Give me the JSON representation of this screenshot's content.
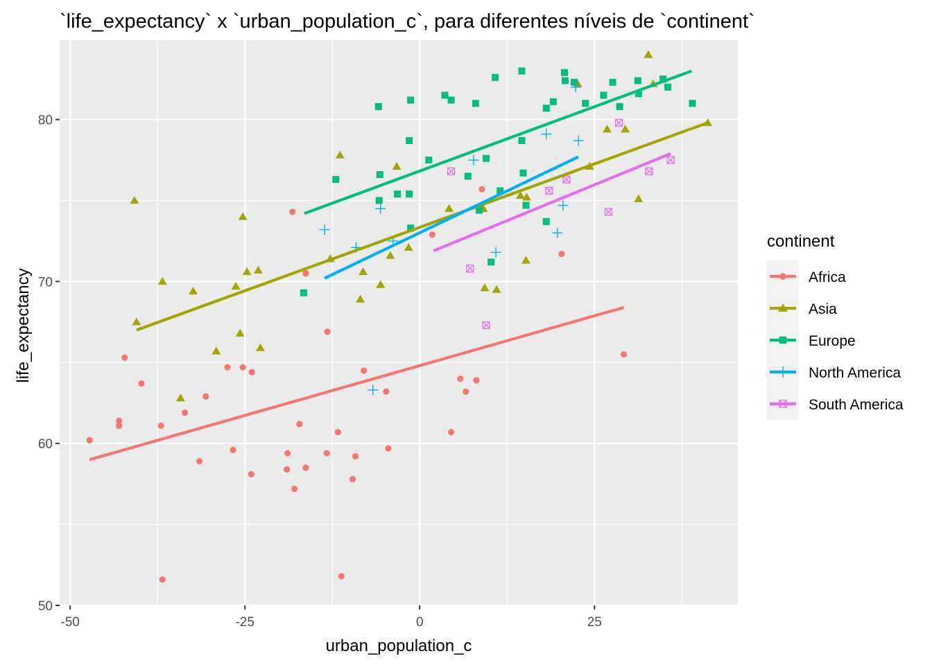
{
  "chart_data": {
    "type": "scatter",
    "title": "`life_expectancy` x `urban_population_c`, para diferentes níveis de `continent`",
    "xlabel": "urban_population_c",
    "ylabel": "life_expectancy",
    "xlim": [
      -51.5,
      45.5
    ],
    "ylim": [
      50,
      84.9
    ],
    "x_ticks": [
      -50,
      -25,
      0,
      25
    ],
    "x_tick_labels": [
      "-50",
      "-25",
      "0",
      "25"
    ],
    "y_ticks": [
      50,
      60,
      70,
      80
    ],
    "y_tick_labels": [
      "50",
      "60",
      "70",
      "80"
    ],
    "grid": true,
    "background": "#ebebeb",
    "legend": {
      "title": "continent",
      "placement": "right"
    },
    "series": [
      {
        "name": "Africa",
        "color": "#F8766D",
        "shape": "circle",
        "trend": [
          [
            -47.2,
            59.0
          ],
          [
            29.2,
            68.4
          ]
        ],
        "points": [
          [
            -47.2,
            60.2
          ],
          [
            -43.0,
            61.4
          ],
          [
            -43.0,
            61.1
          ],
          [
            -42.2,
            65.3
          ],
          [
            -39.8,
            63.7
          ],
          [
            -37.0,
            61.1
          ],
          [
            -36.8,
            51.6
          ],
          [
            -33.6,
            61.9
          ],
          [
            -31.5,
            58.9
          ],
          [
            -30.6,
            62.9
          ],
          [
            -27.5,
            64.7
          ],
          [
            -26.7,
            59.6
          ],
          [
            -25.3,
            64.7
          ],
          [
            -24.1,
            58.1
          ],
          [
            -24.0,
            64.4
          ],
          [
            -18.2,
            74.3
          ],
          [
            -19.0,
            58.4
          ],
          [
            -18.9,
            59.4
          ],
          [
            -17.9,
            57.2
          ],
          [
            -17.2,
            61.2
          ],
          [
            -16.3,
            58.5
          ],
          [
            -16.3,
            70.5
          ],
          [
            -13.2,
            66.9
          ],
          [
            -13.3,
            59.4
          ],
          [
            -11.7,
            60.7
          ],
          [
            -11.2,
            51.8
          ],
          [
            -9.6,
            57.8
          ],
          [
            -9.2,
            59.2
          ],
          [
            -8.0,
            64.5
          ],
          [
            -4.8,
            63.2
          ],
          [
            -4.5,
            59.7
          ],
          [
            1.8,
            72.9
          ],
          [
            4.5,
            60.7
          ],
          [
            5.8,
            64.0
          ],
          [
            6.6,
            63.2
          ],
          [
            8.1,
            63.9
          ],
          [
            8.9,
            75.7
          ],
          [
            20.3,
            71.7
          ],
          [
            29.2,
            65.5
          ]
        ]
      },
      {
        "name": "Asia",
        "color": "#A3A500",
        "shape": "triangle",
        "trend": [
          [
            -40.5,
            67.0
          ],
          [
            41.2,
            79.8
          ]
        ],
        "points": [
          [
            -40.8,
            75.0
          ],
          [
            -40.5,
            67.5
          ],
          [
            -36.8,
            70.0
          ],
          [
            -34.2,
            62.8
          ],
          [
            -32.4,
            69.4
          ],
          [
            -29.1,
            65.7
          ],
          [
            -26.3,
            69.7
          ],
          [
            -25.7,
            66.8
          ],
          [
            -25.3,
            74.0
          ],
          [
            -24.7,
            70.6
          ],
          [
            -23.1,
            70.7
          ],
          [
            -22.8,
            65.9
          ],
          [
            -12.8,
            71.4
          ],
          [
            -11.4,
            77.8
          ],
          [
            -8.5,
            68.9
          ],
          [
            -8.1,
            70.6
          ],
          [
            -5.6,
            69.8
          ],
          [
            -4.2,
            71.6
          ],
          [
            -3.3,
            77.1
          ],
          [
            -1.6,
            72.1
          ],
          [
            4.2,
            74.5
          ],
          [
            9.1,
            74.5
          ],
          [
            9.3,
            69.6
          ],
          [
            11.0,
            69.5
          ],
          [
            14.4,
            75.3
          ],
          [
            15.2,
            71.3
          ],
          [
            15.3,
            75.2
          ],
          [
            22.6,
            82.2
          ],
          [
            24.3,
            77.1
          ],
          [
            26.8,
            79.4
          ],
          [
            29.4,
            79.4
          ],
          [
            31.3,
            75.1
          ],
          [
            32.7,
            84.0
          ],
          [
            33.4,
            82.2
          ],
          [
            41.2,
            79.8
          ]
        ]
      },
      {
        "name": "Europe",
        "color": "#00BF7D",
        "shape": "square",
        "trend": [
          [
            -16.5,
            74.2
          ],
          [
            38.9,
            83.0
          ]
        ],
        "points": [
          [
            -16.6,
            69.3
          ],
          [
            -12.0,
            76.3
          ],
          [
            -5.9,
            80.8
          ],
          [
            -5.8,
            75.0
          ],
          [
            -5.7,
            76.6
          ],
          [
            -3.2,
            75.4
          ],
          [
            -1.5,
            78.7
          ],
          [
            -1.5,
            75.4
          ],
          [
            -1.3,
            81.2
          ],
          [
            -1.3,
            73.3
          ],
          [
            1.3,
            77.5
          ],
          [
            3.6,
            81.5
          ],
          [
            4.5,
            81.2
          ],
          [
            6.9,
            76.5
          ],
          [
            8.0,
            81.0
          ],
          [
            8.5,
            74.4
          ],
          [
            9.5,
            77.6
          ],
          [
            10.2,
            71.2
          ],
          [
            10.8,
            82.6
          ],
          [
            11.5,
            75.6
          ],
          [
            14.6,
            83.0
          ],
          [
            14.6,
            78.7
          ],
          [
            14.8,
            76.7
          ],
          [
            15.2,
            74.7
          ],
          [
            18.1,
            73.7
          ],
          [
            18.1,
            80.7
          ],
          [
            19.1,
            81.1
          ],
          [
            20.7,
            82.9
          ],
          [
            20.8,
            82.4
          ],
          [
            22.1,
            82.3
          ],
          [
            23.7,
            81.0
          ],
          [
            26.3,
            81.5
          ],
          [
            27.6,
            82.3
          ],
          [
            28.6,
            80.8
          ],
          [
            31.2,
            82.4
          ],
          [
            31.3,
            81.6
          ],
          [
            34.8,
            82.5
          ],
          [
            35.5,
            82.0
          ],
          [
            39.0,
            81.0
          ]
        ]
      },
      {
        "name": "North America",
        "color": "#00B0F6",
        "shape": "plus",
        "trend": [
          [
            -13.6,
            70.2
          ],
          [
            22.7,
            77.7
          ]
        ],
        "points": [
          [
            -13.6,
            73.2
          ],
          [
            -9.1,
            72.1
          ],
          [
            -6.7,
            63.3
          ],
          [
            -5.6,
            74.5
          ],
          [
            -3.8,
            72.5
          ],
          [
            7.7,
            77.5
          ],
          [
            10.9,
            71.8
          ],
          [
            18.1,
            79.1
          ],
          [
            19.7,
            73.0
          ],
          [
            20.5,
            74.7
          ],
          [
            22.3,
            82.0
          ],
          [
            22.7,
            78.7
          ]
        ]
      },
      {
        "name": "South America",
        "color": "#E76BF3",
        "shape": "square-x",
        "trend": [
          [
            2.0,
            71.9
          ],
          [
            35.9,
            77.9
          ]
        ],
        "points": [
          [
            4.5,
            76.8
          ],
          [
            7.2,
            70.8
          ],
          [
            9.5,
            67.3
          ],
          [
            18.5,
            75.6
          ],
          [
            21.0,
            76.3
          ],
          [
            27.0,
            74.3
          ],
          [
            28.5,
            79.8
          ],
          [
            32.8,
            76.8
          ],
          [
            35.9,
            77.5
          ]
        ]
      }
    ]
  }
}
